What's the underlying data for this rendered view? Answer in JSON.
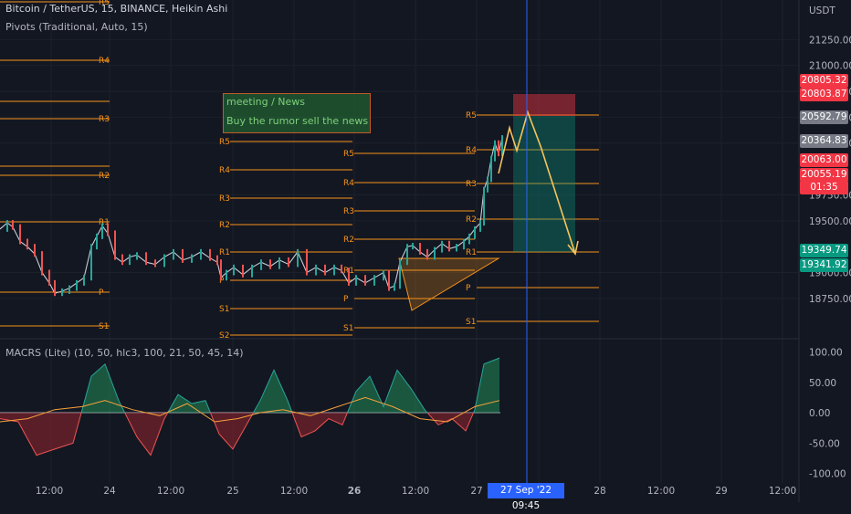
{
  "legend": {
    "main": "Bitcoin / TetherUS, 15, BINANCE, Heikin Ashi",
    "pivots": "Pivots (Traditional, Auto, 15)",
    "macrs": "MACRS (Lite) (10, 50, hlc3, 100, 21, 50, 45, 14)"
  },
  "currency": "USDT",
  "note": {
    "line1": "meeting / News",
    "line2": "Buy the rumor sell the news"
  },
  "price_labels": [
    {
      "text": "20805.32",
      "color": "#f23645"
    },
    {
      "text": "20803.87",
      "color": "#f23645"
    },
    {
      "text": "20592.79",
      "color": "#787b86"
    },
    {
      "text": "20364.83",
      "color": "#787b86"
    },
    {
      "text": "20063.00",
      "color": "#f23645"
    },
    {
      "text": "20055.19",
      "color": "#f23645"
    },
    {
      "text": "01:35",
      "color": "#f23645"
    },
    {
      "text": "19349.74",
      "color": "#089981"
    },
    {
      "text": "19341.92",
      "color": "#089981"
    }
  ],
  "time_badge": "27 Sep '22   09:45",
  "colors": {
    "bg": "#131722",
    "pivot": "#f7931a",
    "up": "#26a69a",
    "down": "#ef5350",
    "cursor": "#2962ff",
    "grid": "#1f2330"
  },
  "chart_data": [
    {
      "type": "line",
      "title": "Bitcoin / TetherUS, 15, BINANCE, Heikin Ashi",
      "x_ticks": [
        "12:00",
        "24",
        "12:00",
        "25",
        "12:00",
        "26",
        "12:00",
        "27",
        "12:00",
        "28",
        "29",
        "12:00"
      ],
      "y_ticks": [
        21250,
        21000,
        20750,
        20500,
        20250,
        19750,
        19500,
        19000,
        18750
      ],
      "ylim": [
        18560,
        21720
      ],
      "series": [
        {
          "x": [
            0,
            8,
            14,
            22,
            30,
            38,
            46,
            54,
            60,
            68,
            76,
            84,
            92,
            100,
            106,
            112,
            118,
            126,
            134,
            142,
            150,
            160,
            170,
            180,
            190,
            200,
            210,
            220,
            230,
            238,
            242,
            248,
            256,
            266,
            276,
            286,
            296,
            306,
            316,
            326,
            336,
            346,
            356,
            366,
            374,
            382,
            390,
            400,
            410,
            420,
            426,
            432,
            438,
            446,
            452,
            460,
            468,
            476,
            484,
            492,
            500,
            508,
            514,
            520,
            526,
            530,
            534,
            538,
            542,
            546,
            550
          ],
          "values": [
            19420,
            19480,
            19440,
            19300,
            19250,
            19180,
            19000,
            18900,
            18800,
            18820,
            18850,
            18900,
            18950,
            19250,
            19350,
            19450,
            19380,
            19150,
            19100,
            19150,
            19170,
            19100,
            19080,
            19150,
            19200,
            19120,
            19150,
            19200,
            19140,
            19100,
            18950,
            19000,
            19050,
            18980,
            19050,
            19100,
            19060,
            19120,
            19080,
            19200,
            19000,
            19050,
            19000,
            19050,
            19020,
            18900,
            18950,
            18900,
            18950,
            19000,
            18850,
            18870,
            19100,
            19250,
            19260,
            19200,
            19150,
            19220,
            19280,
            19230,
            19250,
            19300,
            19350,
            19420,
            19480,
            19800,
            19900,
            20100,
            20250,
            20150,
            20300
          ]
        }
      ],
      "pivots": [
        {
          "label": "R5",
          "value": 21700
        },
        {
          "label": "R4",
          "value": 21230
        },
        {
          "label": "R3",
          "value": 20540
        },
        {
          "label": "R2",
          "value": 20010
        },
        {
          "label": "R1",
          "value": 19540
        },
        {
          "label": "P",
          "value": 19060
        },
        {
          "label": "S1",
          "value": 18730
        },
        {
          "label": "S2",
          "value": 18560
        }
      ],
      "position": {
        "entry": 20592.79,
        "stop": 20805.32,
        "target": 19341.92
      }
    },
    {
      "type": "area",
      "title": "MACRS (Lite) (10, 50, hlc3, 100, 21, 50, 45, 14)",
      "y_ticks": [
        100,
        50,
        0,
        -50,
        -100
      ],
      "ylim": [
        -100,
        100
      ],
      "series": [
        {
          "x": [
            0,
            20,
            40,
            60,
            80,
            100,
            115,
            130,
            150,
            165,
            180,
            195,
            210,
            225,
            240,
            255,
            270,
            285,
            300,
            315,
            330,
            345,
            360,
            375,
            390,
            405,
            420,
            435,
            450,
            465,
            480,
            495,
            510,
            520,
            530,
            547
          ],
          "values": [
            -10,
            -15,
            -70,
            -60,
            -50,
            60,
            80,
            20,
            -40,
            -70,
            -10,
            30,
            15,
            20,
            -35,
            -60,
            -20,
            20,
            70,
            20,
            -40,
            -30,
            -10,
            -20,
            35,
            60,
            10,
            70,
            40,
            5,
            -20,
            -10,
            -30,
            5,
            80,
            90
          ]
        },
        {
          "x": [
            0,
            30,
            60,
            90,
            115,
            145,
            175,
            205,
            235,
            260,
            285,
            310,
            340,
            370,
            400,
            430,
            460,
            490,
            520,
            547
          ],
          "values": [
            -15,
            -10,
            5,
            10,
            20,
            5,
            -5,
            15,
            -15,
            -10,
            0,
            5,
            -5,
            10,
            25,
            10,
            -10,
            -15,
            10,
            20
          ]
        }
      ]
    }
  ]
}
